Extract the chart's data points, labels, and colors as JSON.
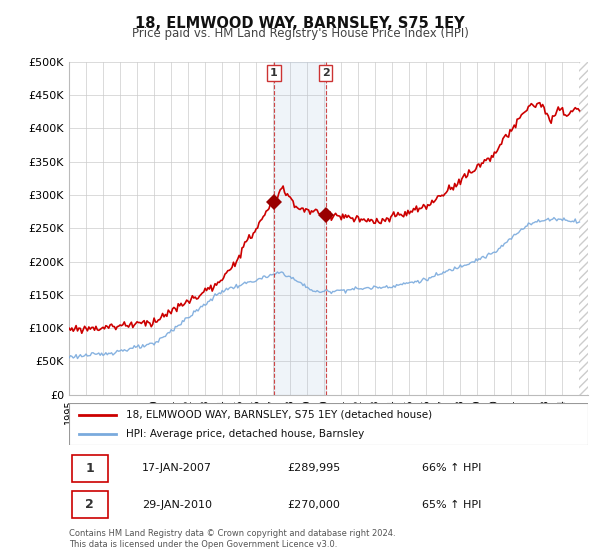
{
  "title": "18, ELMWOOD WAY, BARNSLEY, S75 1EY",
  "subtitle": "Price paid vs. HM Land Registry's House Price Index (HPI)",
  "ylabel_ticks": [
    "£0",
    "£50K",
    "£100K",
    "£150K",
    "£200K",
    "£250K",
    "£300K",
    "£350K",
    "£400K",
    "£450K",
    "£500K"
  ],
  "ytick_values": [
    0,
    50000,
    100000,
    150000,
    200000,
    250000,
    300000,
    350000,
    400000,
    450000,
    500000
  ],
  "x_start_year": 1995,
  "x_end_year": 2025,
  "legend_line1": "18, ELMWOOD WAY, BARNSLEY, S75 1EY (detached house)",
  "legend_line2": "HPI: Average price, detached house, Barnsley",
  "transaction1_date": "17-JAN-2007",
  "transaction1_price": "£289,995",
  "transaction1_hpi": "66% ↑ HPI",
  "transaction1_year": 2007.05,
  "transaction1_value": 289995,
  "transaction2_date": "29-JAN-2010",
  "transaction2_price": "£270,000",
  "transaction2_hpi": "65% ↑ HPI",
  "transaction2_year": 2010.08,
  "transaction2_value": 270000,
  "hpi_color": "#7aaadd",
  "price_color": "#cc0000",
  "marker_color": "#990000",
  "footer_text": "Contains HM Land Registry data © Crown copyright and database right 2024.\nThis data is licensed under the Open Government Licence v3.0.",
  "background_color": "#ffffff",
  "grid_color": "#cccccc",
  "chart_bg": "#ffffff"
}
